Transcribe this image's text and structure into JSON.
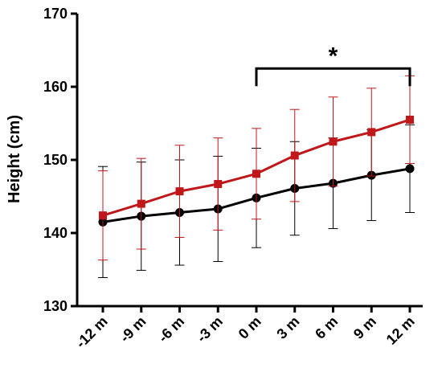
{
  "chart_data": {
    "type": "line",
    "title": "",
    "xlabel": "",
    "ylabel": "Height (cm)",
    "categories": [
      "-12 m",
      "-9 m",
      "-6 m",
      "-3 m",
      "0 m",
      "3 m",
      "6 m",
      "9 m",
      "12 m"
    ],
    "ylim": [
      130,
      170
    ],
    "yticks": [
      "130",
      "140",
      "150",
      "160",
      "170"
    ],
    "grid": false,
    "legend": "none",
    "series": [
      {
        "name": "",
        "color": "#c0171b",
        "marker": "square",
        "values": [
          142.4,
          144.0,
          145.7,
          146.7,
          148.1,
          150.6,
          152.5,
          153.8,
          155.5
        ],
        "sd": [
          6.1,
          6.2,
          6.3,
          6.3,
          6.2,
          6.3,
          6.1,
          6.0,
          6.0
        ]
      },
      {
        "name": "",
        "color": "#000000",
        "marker": "circle",
        "values": [
          141.5,
          142.3,
          142.8,
          143.3,
          144.8,
          146.1,
          146.8,
          147.9,
          148.8
        ],
        "sd": [
          7.6,
          7.4,
          7.2,
          7.2,
          6.8,
          6.4,
          6.2,
          6.2,
          6.0
        ]
      }
    ],
    "annotations": [
      {
        "text": "*",
        "from": "0 m",
        "to": "12 m",
        "y": 162.5
      }
    ]
  }
}
